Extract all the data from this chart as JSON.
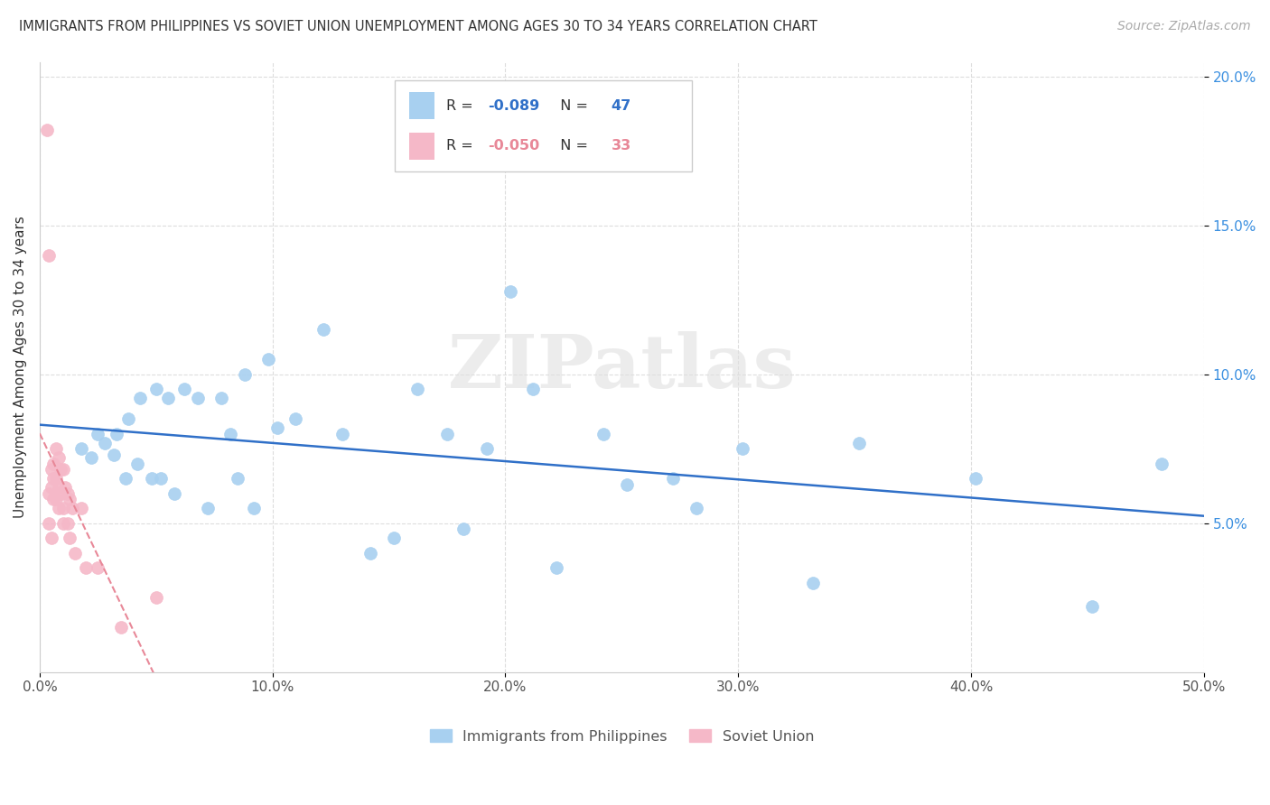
{
  "title": "IMMIGRANTS FROM PHILIPPINES VS SOVIET UNION UNEMPLOYMENT AMONG AGES 30 TO 34 YEARS CORRELATION CHART",
  "source": "Source: ZipAtlas.com",
  "ylabel": "Unemployment Among Ages 30 to 34 years",
  "xlim": [
    0.0,
    0.5
  ],
  "ylim": [
    0.0,
    0.205
  ],
  "xticks": [
    0.0,
    0.1,
    0.2,
    0.3,
    0.4,
    0.5
  ],
  "xticklabels": [
    "0.0%",
    "10.0%",
    "20.0%",
    "30.0%",
    "40.0%",
    "50.0%"
  ],
  "yticks": [
    0.05,
    0.1,
    0.15,
    0.2
  ],
  "yticklabels": [
    "5.0%",
    "10.0%",
    "15.0%",
    "20.0%"
  ],
  "philippines_R": -0.089,
  "philippines_N": 47,
  "soviet_R": -0.05,
  "soviet_N": 33,
  "philippines_color": "#a8d0f0",
  "soviet_color": "#f5b8c8",
  "trendline_philippines_color": "#3070c8",
  "trendline_soviet_color": "#e88898",
  "philippines_x": [
    0.018,
    0.022,
    0.025,
    0.028,
    0.032,
    0.033,
    0.037,
    0.038,
    0.042,
    0.043,
    0.048,
    0.05,
    0.052,
    0.055,
    0.058,
    0.062,
    0.068,
    0.072,
    0.078,
    0.082,
    0.085,
    0.088,
    0.092,
    0.098,
    0.102,
    0.11,
    0.122,
    0.13,
    0.142,
    0.152,
    0.162,
    0.175,
    0.182,
    0.192,
    0.202,
    0.212,
    0.222,
    0.242,
    0.252,
    0.272,
    0.282,
    0.302,
    0.332,
    0.352,
    0.402,
    0.452,
    0.482
  ],
  "philippines_y": [
    0.075,
    0.072,
    0.08,
    0.077,
    0.073,
    0.08,
    0.065,
    0.085,
    0.07,
    0.092,
    0.065,
    0.095,
    0.065,
    0.092,
    0.06,
    0.095,
    0.092,
    0.055,
    0.092,
    0.08,
    0.065,
    0.1,
    0.055,
    0.105,
    0.082,
    0.085,
    0.115,
    0.08,
    0.04,
    0.045,
    0.095,
    0.08,
    0.048,
    0.075,
    0.128,
    0.095,
    0.035,
    0.08,
    0.063,
    0.065,
    0.055,
    0.075,
    0.03,
    0.077,
    0.065,
    0.022,
    0.07
  ],
  "soviet_x": [
    0.003,
    0.004,
    0.004,
    0.004,
    0.005,
    0.005,
    0.005,
    0.006,
    0.006,
    0.006,
    0.007,
    0.007,
    0.007,
    0.008,
    0.008,
    0.008,
    0.009,
    0.009,
    0.01,
    0.01,
    0.01,
    0.011,
    0.012,
    0.012,
    0.013,
    0.013,
    0.014,
    0.015,
    0.018,
    0.02,
    0.025,
    0.035,
    0.05
  ],
  "soviet_y": [
    0.182,
    0.14,
    0.06,
    0.05,
    0.068,
    0.062,
    0.045,
    0.07,
    0.065,
    0.058,
    0.075,
    0.065,
    0.058,
    0.072,
    0.062,
    0.055,
    0.068,
    0.06,
    0.068,
    0.055,
    0.05,
    0.062,
    0.06,
    0.05,
    0.058,
    0.045,
    0.055,
    0.04,
    0.055,
    0.035,
    0.035,
    0.015,
    0.025
  ],
  "watermark": "ZIPatlas",
  "watermark_color": "#e0e0e0",
  "background_color": "#ffffff",
  "grid_color": "#dddddd"
}
